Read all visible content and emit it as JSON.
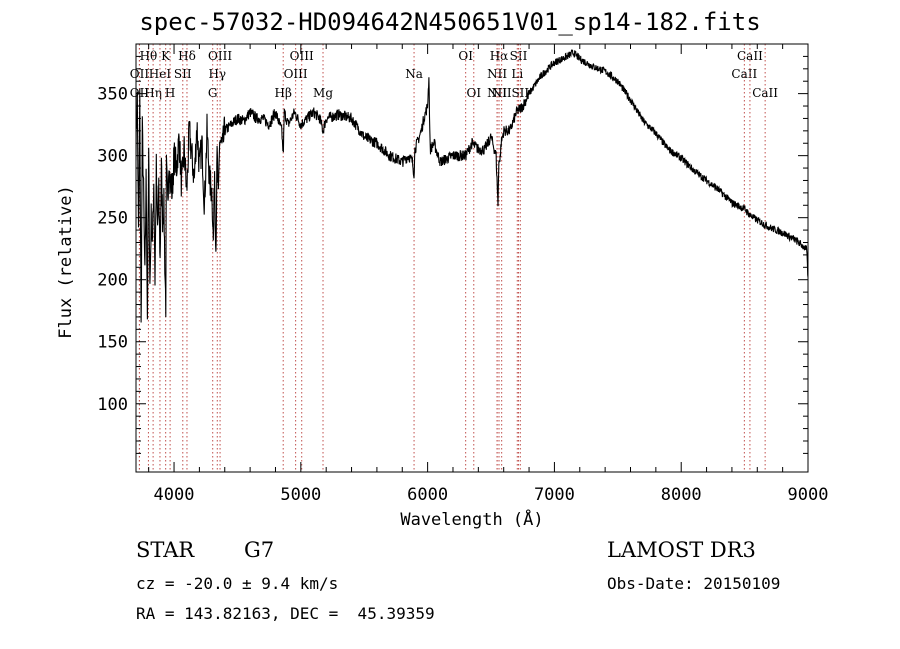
{
  "chart_data": {
    "type": "line",
    "title": "spec-57032-HD094642N450651V01_sp14-182.fits",
    "xlabel": "Wavelength (Å)",
    "ylabel": "Flux (relative)",
    "xlim": [
      3700,
      9000
    ],
    "ylim": [
      45,
      390
    ],
    "xticks": [
      4000,
      5000,
      6000,
      7000,
      8000,
      9000
    ],
    "yticks": [
      100,
      150,
      200,
      250,
      300,
      350
    ],
    "series": [
      {
        "name": "flux",
        "x": [
          3700,
          3710,
          3720,
          3730,
          3740,
          3750,
          3760,
          3770,
          3780,
          3790,
          3800,
          3810,
          3820,
          3830,
          3840,
          3850,
          3860,
          3870,
          3880,
          3890,
          3900,
          3910,
          3920,
          3930,
          3935,
          3940,
          3950,
          3960,
          3968,
          3975,
          3985,
          4000,
          4020,
          4040,
          4060,
          4080,
          4100,
          4120,
          4140,
          4160,
          4180,
          4200,
          4220,
          4240,
          4260,
          4280,
          4300,
          4310,
          4320,
          4330,
          4340,
          4350,
          4360,
          4380,
          4400,
          4450,
          4500,
          4550,
          4600,
          4650,
          4700,
          4750,
          4800,
          4850,
          4861,
          4870,
          4900,
          4950,
          5000,
          5050,
          5100,
          5150,
          5175,
          5200,
          5300,
          5400,
          5500,
          5600,
          5700,
          5800,
          5850,
          5880,
          5893,
          5900,
          5950,
          5970,
          6000,
          6010,
          6020,
          6050,
          6100,
          6200,
          6300,
          6350,
          6400,
          6450,
          6500,
          6540,
          6555,
          6563,
          6570,
          6580,
          6600,
          6650,
          6700,
          6750,
          6800,
          6900,
          7000,
          7100,
          7150,
          7200,
          7250,
          7300,
          7400,
          7500,
          7600,
          7700,
          7800,
          7900,
          8000,
          8100,
          8200,
          8300,
          8400,
          8500,
          8542,
          8600,
          8700,
          8800,
          8900,
          8950,
          8990,
          9000
        ],
        "values": [
          310,
          345,
          235,
          345,
          160,
          320,
          270,
          200,
          280,
          170,
          300,
          195,
          250,
          230,
          280,
          200,
          290,
          240,
          270,
          215,
          290,
          250,
          260,
          200,
          180,
          290,
          260,
          300,
          275,
          280,
          270,
          300,
          290,
          315,
          275,
          305,
          270,
          320,
          300,
          280,
          325,
          290,
          310,
          260,
          320,
          280,
          270,
          230,
          290,
          225,
          300,
          260,
          315,
          305,
          320,
          325,
          330,
          328,
          335,
          330,
          330,
          325,
          335,
          320,
          300,
          335,
          325,
          335,
          325,
          330,
          335,
          330,
          320,
          330,
          333,
          330,
          315,
          310,
          300,
          295,
          300,
          295,
          285,
          305,
          320,
          330,
          340,
          365,
          305,
          310,
          295,
          300,
          300,
          310,
          305,
          305,
          315,
          300,
          260,
          300,
          295,
          310,
          320,
          320,
          335,
          340,
          350,
          365,
          375,
          380,
          383,
          378,
          375,
          372,
          368,
          360,
          345,
          328,
          318,
          305,
          298,
          288,
          280,
          272,
          262,
          257,
          252,
          248,
          242,
          238,
          232,
          228,
          224,
          200
        ]
      }
    ],
    "line_markers": [
      {
        "label": "Hθ",
        "x": 3798,
        "row": 1
      },
      {
        "label": "OII",
        "x": 3727,
        "row": 2
      },
      {
        "label": "OII",
        "x": 3727,
        "row": 3
      },
      {
        "label": "Hη",
        "x": 3835,
        "row": 3
      },
      {
        "label": "HeI",
        "x": 3889,
        "row": 2
      },
      {
        "label": "K",
        "x": 3934,
        "row": 1
      },
      {
        "label": "H",
        "x": 3969,
        "row": 3
      },
      {
        "label": "SII",
        "x": 4069,
        "row": 2
      },
      {
        "label": "Hδ",
        "x": 4102,
        "row": 1
      },
      {
        "label": "Hγ",
        "x": 4341,
        "row": 2
      },
      {
        "label": "OIII",
        "x": 4363,
        "row": 1
      },
      {
        "label": "G",
        "x": 4305,
        "row": 3
      },
      {
        "label": "Hβ",
        "x": 4861,
        "row": 3
      },
      {
        "label": "OIII",
        "x": 4959,
        "row": 2
      },
      {
        "label": "OIII",
        "x": 5007,
        "row": 1
      },
      {
        "label": "Mg",
        "x": 5175,
        "row": 3
      },
      {
        "label": "Na",
        "x": 5893,
        "row": 2
      },
      {
        "label": "OI",
        "x": 6300,
        "row": 1
      },
      {
        "label": "OI",
        "x": 6364,
        "row": 3
      },
      {
        "label": "NII",
        "x": 6548,
        "row": 2
      },
      {
        "label": "NII",
        "x": 6548,
        "row": 3
      },
      {
        "label": "Hα",
        "x": 6563,
        "row": 1
      },
      {
        "label": "NII",
        "x": 6584,
        "row": 3
      },
      {
        "label": "Li",
        "x": 6707,
        "row": 2
      },
      {
        "label": "SII",
        "x": 6717,
        "row": 1
      },
      {
        "label": "SII",
        "x": 6731,
        "row": 3
      },
      {
        "label": "CaII",
        "x": 8498,
        "row": 2
      },
      {
        "label": "CaII",
        "x": 8542,
        "row": 1
      },
      {
        "label": "CaII",
        "x": 8662,
        "row": 3
      }
    ],
    "marker_color": "#c0504d",
    "line_color": "#000000"
  },
  "info": {
    "object_type": "STAR",
    "subclass": "G7",
    "survey": "LAMOST DR3",
    "cz": "cz = -20.0 ± 9.4 km/s",
    "obs_date": "Obs-Date: 20150109",
    "coords": "RA = 143.82163, DEC =  45.39359"
  }
}
